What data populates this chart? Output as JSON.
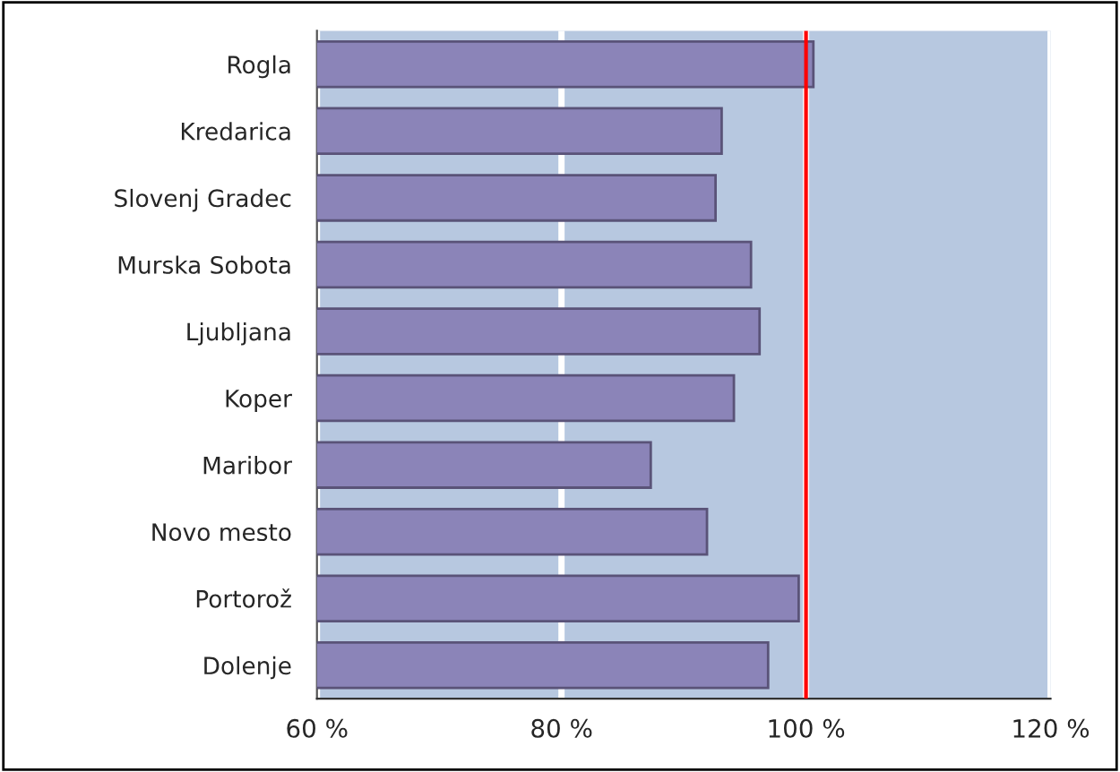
{
  "chart_data": {
    "type": "bar",
    "orientation": "horizontal",
    "categories": [
      "Rogla",
      "Kredarica",
      "Slovenj Gradec",
      "Murska Sobota",
      "Ljubljana",
      "Koper",
      "Maribor",
      "Novo mesto",
      "Portorož",
      "Dolenje"
    ],
    "values": [
      100.6,
      93.1,
      92.6,
      95.5,
      96.2,
      94.1,
      87.3,
      91.9,
      99.4,
      96.9
    ],
    "color": "#8b84b8",
    "xlim": [
      60,
      120
    ],
    "xticks": [
      {
        "value": 60,
        "label": "60 %"
      },
      {
        "value": 80,
        "label": "80 %"
      },
      {
        "value": 100,
        "label": "100 %"
      },
      {
        "value": 120,
        "label": "120 %"
      }
    ],
    "grid": "x",
    "ref_lines": [
      {
        "axis": "x",
        "value": 100,
        "color": "#ff0000"
      }
    ]
  }
}
